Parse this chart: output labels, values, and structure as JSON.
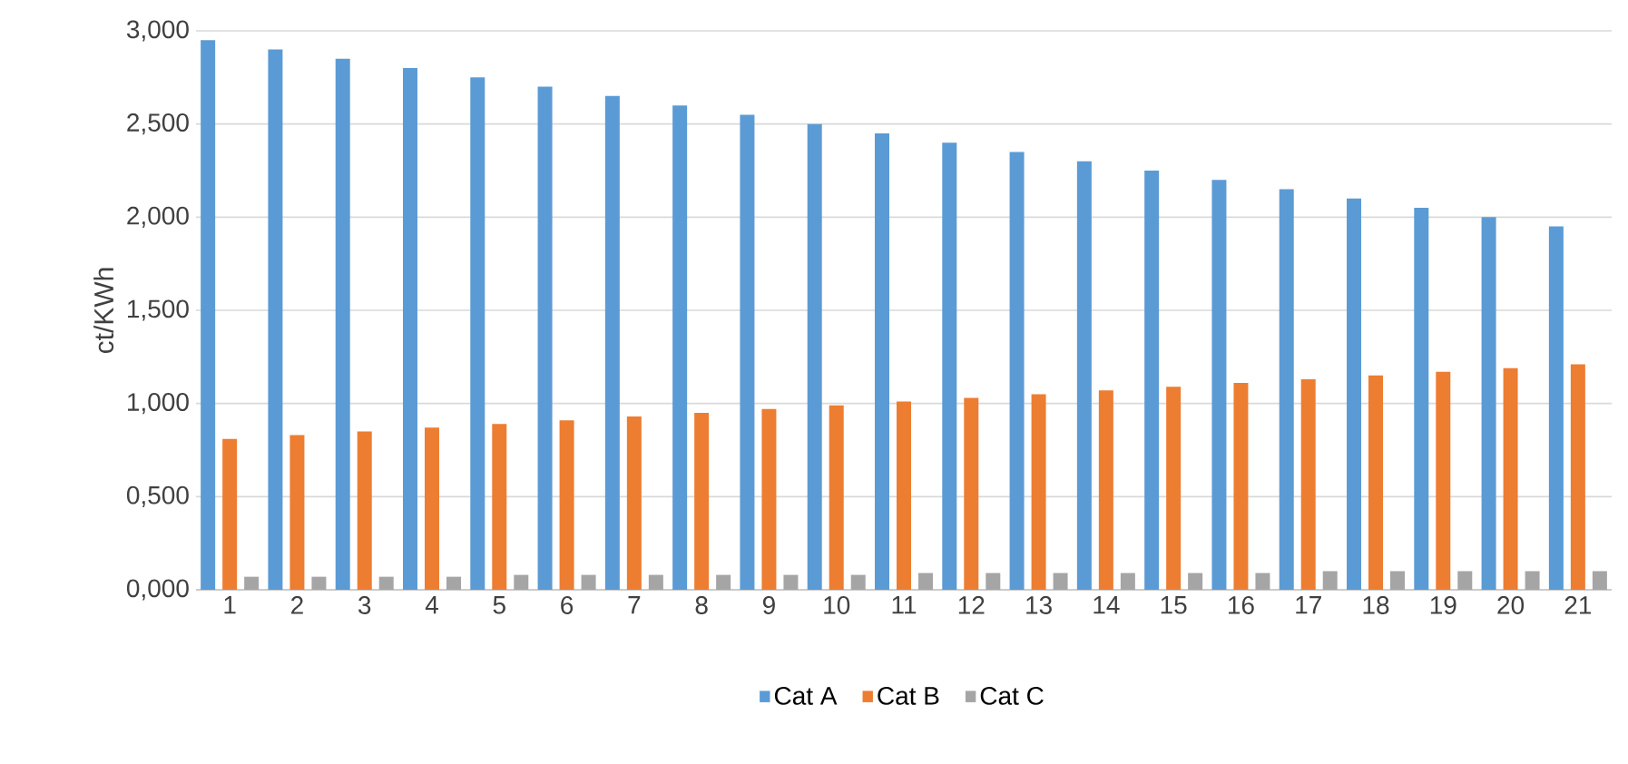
{
  "chart_data": {
    "type": "bar",
    "ylabel": "ct/KWh",
    "categories": [
      "1",
      "2",
      "3",
      "4",
      "5",
      "6",
      "7",
      "8",
      "9",
      "10",
      "11",
      "12",
      "13",
      "14",
      "15",
      "16",
      "17",
      "18",
      "19",
      "20",
      "21"
    ],
    "series": [
      {
        "name": "Cat A",
        "color": "#5b9bd5",
        "values": [
          2.95,
          2.9,
          2.85,
          2.8,
          2.75,
          2.7,
          2.65,
          2.6,
          2.55,
          2.5,
          2.45,
          2.4,
          2.35,
          2.3,
          2.25,
          2.2,
          2.15,
          2.1,
          2.05,
          2.0,
          1.95
        ]
      },
      {
        "name": "Cat B",
        "color": "#ed7d31",
        "values": [
          0.81,
          0.83,
          0.85,
          0.87,
          0.89,
          0.91,
          0.93,
          0.95,
          0.97,
          0.99,
          1.01,
          1.03,
          1.05,
          1.07,
          1.09,
          1.11,
          1.13,
          1.15,
          1.17,
          1.19,
          1.21
        ]
      },
      {
        "name": "Cat C",
        "color": "#a5a5a5",
        "values": [
          0.07,
          0.07,
          0.07,
          0.07,
          0.08,
          0.08,
          0.08,
          0.08,
          0.08,
          0.08,
          0.09,
          0.09,
          0.09,
          0.09,
          0.09,
          0.09,
          0.1,
          0.1,
          0.1,
          0.1,
          0.1
        ]
      }
    ],
    "ylim": [
      0,
      3
    ],
    "yticks": [
      {
        "value": 0,
        "label": "0,000"
      },
      {
        "value": 0.5,
        "label": "0,500"
      },
      {
        "value": 1,
        "label": "1,000"
      },
      {
        "value": 1.5,
        "label": "1,500"
      },
      {
        "value": 2,
        "label": "2,000"
      },
      {
        "value": 2.5,
        "label": "2,500"
      },
      {
        "value": 3,
        "label": "3,000"
      }
    ],
    "grid": "y",
    "legend": "bottom"
  }
}
